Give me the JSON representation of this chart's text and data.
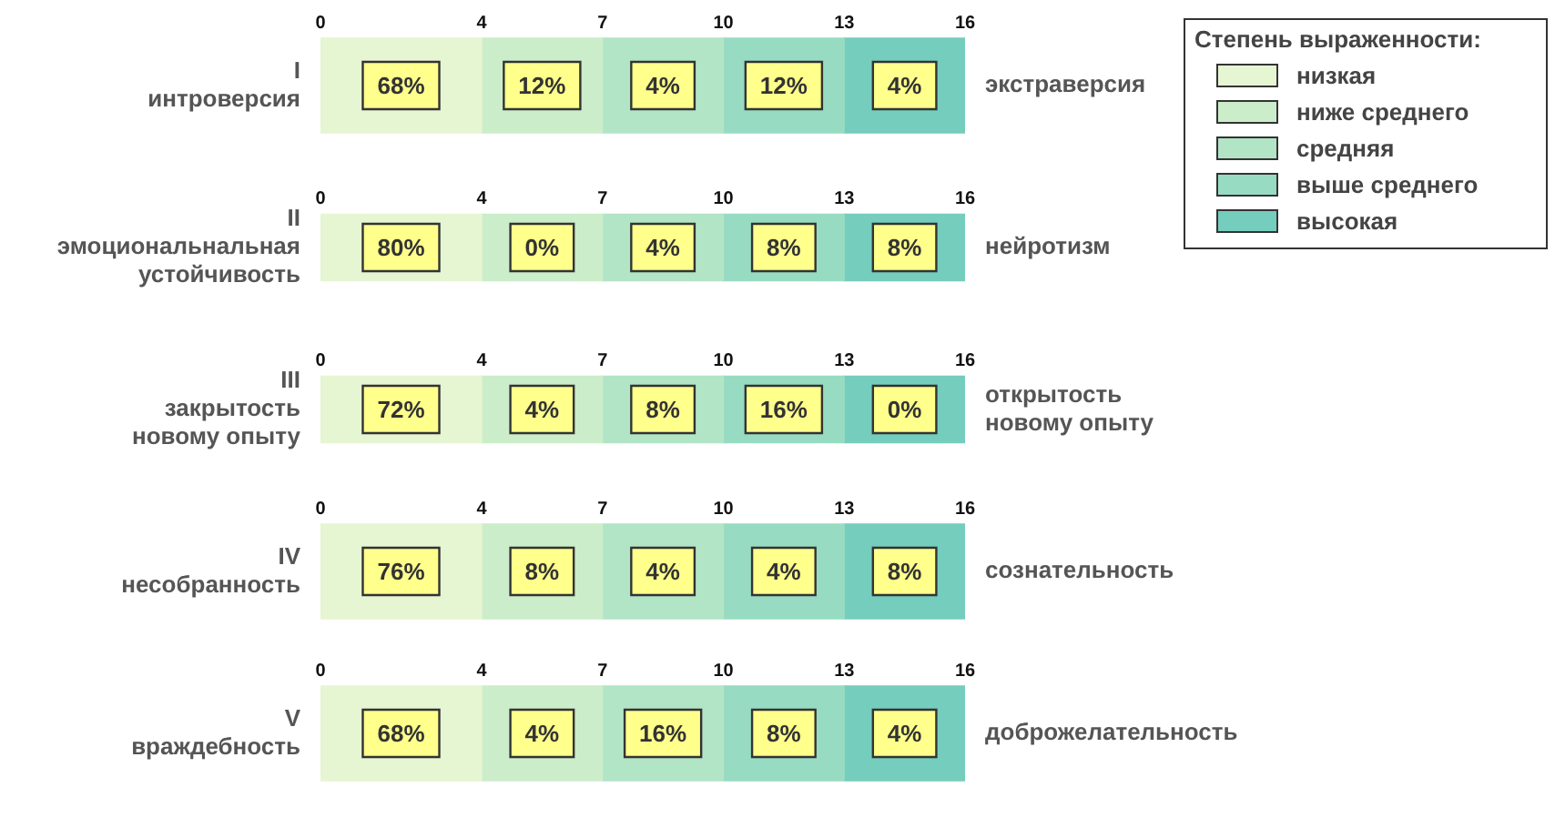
{
  "chart_data": [
    {
      "type": "bar",
      "orientation": "horizontal",
      "stacked": true,
      "categories": [
        "I\nинтроверсия"
      ],
      "y2_categories": [
        "экстраверсия"
      ],
      "series": [
        {
          "name": "низкая",
          "color": "#e6f5d2",
          "values": [
            4
          ]
        },
        {
          "name": "ниже среднего",
          "color": "#cbedca",
          "values": [
            3
          ]
        },
        {
          "name": "средняя",
          "color": "#b2e4c6",
          "values": [
            3
          ]
        },
        {
          "name": "выше среднего",
          "color": "#98dbc3",
          "values": [
            3
          ]
        },
        {
          "name": "высокая",
          "color": "#74cdbd",
          "values": [
            3
          ]
        }
      ],
      "xlim": [
        0,
        16
      ],
      "xticks": [
        0,
        4,
        7,
        10,
        13,
        16
      ],
      "legend": "right",
      "legend_title": "Степень выраженности:",
      "annotations": [
        {
          "text": "68%",
          "x": 2
        },
        {
          "text": "12%",
          "x": 5.5
        },
        {
          "text": "4%",
          "x": 8.5
        },
        {
          "text": "12%",
          "x": 11.5
        },
        {
          "text": "4%",
          "x": 14.5
        }
      ]
    },
    {
      "type": "bar",
      "orientation": "horizontal",
      "stacked": true,
      "categories": [
        "II\nэмоциональнальная\nустойчивость"
      ],
      "y2_categories": [
        "нейротизм"
      ],
      "series": [
        {
          "color": "#e6f5d2",
          "values": [
            4
          ]
        },
        {
          "color": "#cbedca",
          "values": [
            3
          ]
        },
        {
          "color": "#b2e4c6",
          "values": [
            3
          ]
        },
        {
          "color": "#98dbc3",
          "values": [
            3
          ]
        },
        {
          "color": "#74cdbd",
          "values": [
            3
          ]
        }
      ],
      "xlim": [
        0,
        16
      ],
      "xticks": [
        0,
        4,
        7,
        10,
        13,
        16
      ],
      "annotations": [
        {
          "text": "80%",
          "x": 2
        },
        {
          "text": "0%",
          "x": 5.5
        },
        {
          "text": "4%",
          "x": 8.5
        },
        {
          "text": "8%",
          "x": 11.5
        },
        {
          "text": "8%",
          "x": 14.5
        }
      ]
    },
    {
      "type": "bar",
      "orientation": "horizontal",
      "stacked": true,
      "categories": [
        "III\nзакрытость\nновому опыту"
      ],
      "y2_categories": [
        "открытость\nновому опыту"
      ],
      "series": [
        {
          "color": "#e6f5d2",
          "values": [
            4
          ]
        },
        {
          "color": "#cbedca",
          "values": [
            3
          ]
        },
        {
          "color": "#b2e4c6",
          "values": [
            3
          ]
        },
        {
          "color": "#98dbc3",
          "values": [
            3
          ]
        },
        {
          "color": "#74cdbd",
          "values": [
            3
          ]
        }
      ],
      "xlim": [
        0,
        16
      ],
      "xticks": [
        0,
        4,
        7,
        10,
        13,
        16
      ],
      "annotations": [
        {
          "text": "72%",
          "x": 2
        },
        {
          "text": "4%",
          "x": 5.5
        },
        {
          "text": "8%",
          "x": 8.5
        },
        {
          "text": "16%",
          "x": 11.5
        },
        {
          "text": "0%",
          "x": 14.5
        }
      ]
    },
    {
      "type": "bar",
      "orientation": "horizontal",
      "stacked": true,
      "categories": [
        "IV\nнесобранность"
      ],
      "y2_categories": [
        "сознательность"
      ],
      "series": [
        {
          "color": "#e6f5d2",
          "values": [
            4
          ]
        },
        {
          "color": "#cbedca",
          "values": [
            3
          ]
        },
        {
          "color": "#b2e4c6",
          "values": [
            3
          ]
        },
        {
          "color": "#98dbc3",
          "values": [
            3
          ]
        },
        {
          "color": "#74cdbd",
          "values": [
            3
          ]
        }
      ],
      "xlim": [
        0,
        16
      ],
      "xticks": [
        0,
        4,
        7,
        10,
        13,
        16
      ],
      "annotations": [
        {
          "text": "76%",
          "x": 2
        },
        {
          "text": "8%",
          "x": 5.5
        },
        {
          "text": "4%",
          "x": 8.5
        },
        {
          "text": "4%",
          "x": 11.5
        },
        {
          "text": "8%",
          "x": 14.5
        }
      ]
    },
    {
      "type": "bar",
      "orientation": "horizontal",
      "stacked": true,
      "categories": [
        "V\nвраждебность"
      ],
      "y2_categories": [
        "доброжелательность"
      ],
      "series": [
        {
          "color": "#e6f5d2",
          "values": [
            4
          ]
        },
        {
          "color": "#cbedca",
          "values": [
            3
          ]
        },
        {
          "color": "#b2e4c6",
          "values": [
            3
          ]
        },
        {
          "color": "#98dbc3",
          "values": [
            3
          ]
        },
        {
          "color": "#74cdbd",
          "values": [
            3
          ]
        }
      ],
      "xlim": [
        0,
        16
      ],
      "xticks": [
        0,
        4,
        7,
        10,
        13,
        16
      ],
      "annotations": [
        {
          "text": "68%",
          "x": 2
        },
        {
          "text": "4%",
          "x": 5.5
        },
        {
          "text": "16%",
          "x": 8.5
        },
        {
          "text": "8%",
          "x": 11.5
        },
        {
          "text": "4%",
          "x": 14.5
        }
      ]
    }
  ]
}
